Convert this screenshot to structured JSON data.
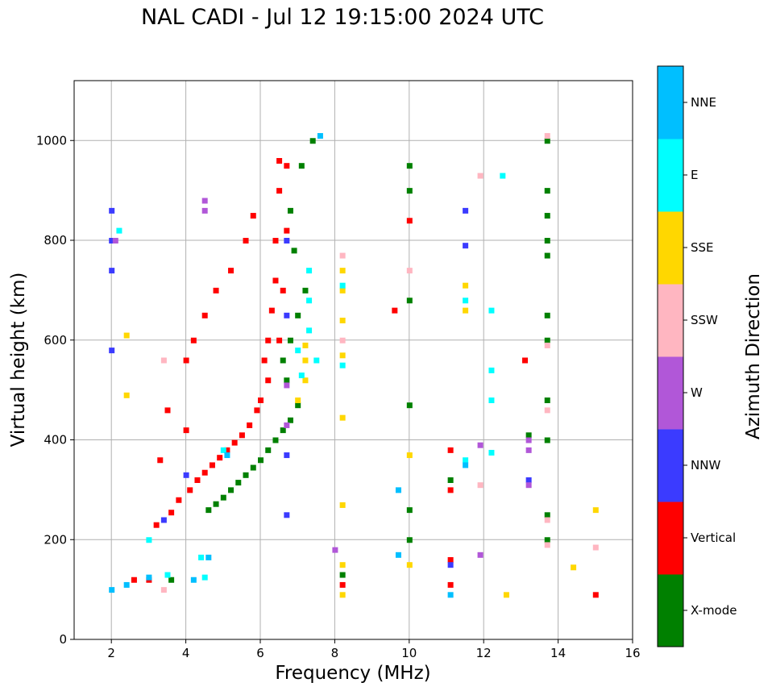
{
  "chart_data": {
    "type": "scatter",
    "title": "NAL CADI - Jul 12 19:15:00 2024 UTC",
    "xlabel": "Frequency (MHz)",
    "ylabel": "Virtual height (km)",
    "xlim": [
      1,
      16
    ],
    "ylim": [
      0,
      1120
    ],
    "xticks": [
      2,
      4,
      6,
      8,
      10,
      12,
      14,
      16
    ],
    "yticks": [
      0,
      200,
      400,
      600,
      800,
      1000
    ],
    "grid": true,
    "colorbar": {
      "label": "Azimuth Direction",
      "categories": [
        {
          "name": "X-mode",
          "color": "#008000"
        },
        {
          "name": "Vertical",
          "color": "#ff0000"
        },
        {
          "name": "NNW",
          "color": "#3b3bff"
        },
        {
          "name": "W",
          "color": "#b157d8"
        },
        {
          "name": "SSW",
          "color": "#ffb6c1"
        },
        {
          "name": "SSE",
          "color": "#ffd700"
        },
        {
          "name": "E",
          "color": "#00ffff"
        },
        {
          "name": "NNE",
          "color": "#00bfff"
        }
      ]
    },
    "series": [
      {
        "name": "X-mode",
        "points": [
          [
            4.6,
            260
          ],
          [
            4.8,
            272
          ],
          [
            5.0,
            285
          ],
          [
            5.2,
            300
          ],
          [
            5.4,
            315
          ],
          [
            5.6,
            330
          ],
          [
            5.8,
            345
          ],
          [
            6.0,
            360
          ],
          [
            6.2,
            380
          ],
          [
            6.4,
            400
          ],
          [
            6.6,
            420
          ],
          [
            6.8,
            440
          ],
          [
            7.0,
            470
          ],
          [
            6.7,
            520
          ],
          [
            6.6,
            560
          ],
          [
            6.8,
            600
          ],
          [
            7.0,
            650
          ],
          [
            7.2,
            700
          ],
          [
            6.9,
            780
          ],
          [
            6.8,
            860
          ],
          [
            7.1,
            950
          ],
          [
            7.4,
            1000
          ],
          [
            10.0,
            470
          ],
          [
            10.0,
            680
          ],
          [
            10.0,
            900
          ],
          [
            10.0,
            950
          ],
          [
            10.0,
            260
          ],
          [
            10.0,
            200
          ],
          [
            11.1,
            320
          ],
          [
            13.7,
            200
          ],
          [
            13.7,
            250
          ],
          [
            13.7,
            400
          ],
          [
            13.7,
            480
          ],
          [
            13.7,
            600
          ],
          [
            13.7,
            650
          ],
          [
            13.7,
            770
          ],
          [
            13.7,
            800
          ],
          [
            13.7,
            850
          ],
          [
            13.7,
            900
          ],
          [
            13.7,
            1000
          ],
          [
            13.2,
            410
          ],
          [
            8.2,
            130
          ],
          [
            3.6,
            120
          ]
        ]
      },
      {
        "name": "Vertical",
        "points": [
          [
            2.6,
            120
          ],
          [
            3.0,
            120
          ],
          [
            3.2,
            230
          ],
          [
            3.6,
            255
          ],
          [
            3.8,
            280
          ],
          [
            4.1,
            300
          ],
          [
            4.3,
            320
          ],
          [
            4.5,
            335
          ],
          [
            4.7,
            350
          ],
          [
            4.9,
            365
          ],
          [
            5.1,
            380
          ],
          [
            5.3,
            395
          ],
          [
            5.5,
            410
          ],
          [
            5.7,
            430
          ],
          [
            5.9,
            460
          ],
          [
            6.0,
            480
          ],
          [
            6.2,
            520
          ],
          [
            6.1,
            560
          ],
          [
            6.2,
            600
          ],
          [
            6.3,
            660
          ],
          [
            6.4,
            720
          ],
          [
            6.4,
            800
          ],
          [
            6.5,
            900
          ],
          [
            6.5,
            960
          ],
          [
            6.7,
            950
          ],
          [
            6.7,
            820
          ],
          [
            6.6,
            700
          ],
          [
            6.5,
            600
          ],
          [
            4.0,
            420
          ],
          [
            4.0,
            560
          ],
          [
            4.2,
            600
          ],
          [
            4.5,
            650
          ],
          [
            4.8,
            700
          ],
          [
            5.2,
            740
          ],
          [
            5.6,
            800
          ],
          [
            5.8,
            850
          ],
          [
            3.5,
            460
          ],
          [
            3.3,
            360
          ],
          [
            11.1,
            300
          ],
          [
            11.1,
            380
          ],
          [
            11.1,
            160
          ],
          [
            11.1,
            110
          ],
          [
            8.2,
            110
          ],
          [
            13.1,
            560
          ],
          [
            15.0,
            90
          ],
          [
            10.0,
            840
          ],
          [
            9.6,
            660
          ]
        ]
      },
      {
        "name": "NNW",
        "points": [
          [
            2.0,
            740
          ],
          [
            2.0,
            800
          ],
          [
            2.0,
            860
          ],
          [
            2.0,
            580
          ],
          [
            6.7,
            250
          ],
          [
            6.7,
            370
          ],
          [
            6.7,
            650
          ],
          [
            6.7,
            800
          ],
          [
            4.0,
            330
          ],
          [
            3.4,
            240
          ],
          [
            11.5,
            790
          ],
          [
            11.5,
            860
          ],
          [
            13.2,
            320
          ],
          [
            11.1,
            150
          ]
        ]
      },
      {
        "name": "W",
        "points": [
          [
            4.5,
            880
          ],
          [
            4.5,
            860
          ],
          [
            6.7,
            430
          ],
          [
            6.7,
            510
          ],
          [
            13.2,
            400
          ],
          [
            13.2,
            380
          ],
          [
            13.2,
            310
          ],
          [
            11.9,
            390
          ],
          [
            11.9,
            170
          ],
          [
            2.1,
            800
          ],
          [
            8.0,
            180
          ]
        ]
      },
      {
        "name": "SSW",
        "points": [
          [
            3.4,
            560
          ],
          [
            3.4,
            100
          ],
          [
            13.7,
            460
          ],
          [
            13.7,
            190
          ],
          [
            13.7,
            240
          ],
          [
            13.7,
            590
          ],
          [
            13.7,
            1010
          ],
          [
            15.0,
            185
          ],
          [
            11.9,
            310
          ],
          [
            11.9,
            930
          ],
          [
            8.2,
            600
          ],
          [
            8.2,
            770
          ],
          [
            10.0,
            740
          ]
        ]
      },
      {
        "name": "SSE",
        "points": [
          [
            2.4,
            610
          ],
          [
            2.4,
            490
          ],
          [
            7.2,
            520
          ],
          [
            7.2,
            560
          ],
          [
            7.2,
            590
          ],
          [
            7.0,
            480
          ],
          [
            8.2,
            700
          ],
          [
            8.2,
            740
          ],
          [
            8.2,
            640
          ],
          [
            8.2,
            570
          ],
          [
            8.2,
            445
          ],
          [
            8.2,
            270
          ],
          [
            8.2,
            150
          ],
          [
            8.2,
            90
          ],
          [
            10.0,
            370
          ],
          [
            10.0,
            150
          ],
          [
            14.4,
            145
          ],
          [
            15.0,
            260
          ],
          [
            12.6,
            90
          ],
          [
            11.5,
            660
          ],
          [
            11.5,
            710
          ]
        ]
      },
      {
        "name": "E",
        "points": [
          [
            7.3,
            620
          ],
          [
            7.3,
            680
          ],
          [
            7.3,
            740
          ],
          [
            7.0,
            580
          ],
          [
            7.1,
            530
          ],
          [
            7.5,
            560
          ],
          [
            8.2,
            550
          ],
          [
            8.2,
            710
          ],
          [
            11.5,
            680
          ],
          [
            11.5,
            360
          ],
          [
            12.5,
            930
          ],
          [
            12.2,
            660
          ],
          [
            12.2,
            540
          ],
          [
            12.2,
            480
          ],
          [
            12.2,
            375
          ],
          [
            2.2,
            820
          ],
          [
            3.0,
            200
          ],
          [
            3.5,
            130
          ],
          [
            4.4,
            165
          ],
          [
            4.5,
            125
          ],
          [
            5.0,
            380
          ]
        ]
      },
      {
        "name": "NNE",
        "points": [
          [
            4.2,
            120
          ],
          [
            4.6,
            165
          ],
          [
            5.1,
            370
          ],
          [
            7.6,
            1010
          ],
          [
            9.7,
            170
          ],
          [
            9.7,
            300
          ],
          [
            11.1,
            90
          ],
          [
            11.5,
            350
          ],
          [
            3.0,
            125
          ],
          [
            2.0,
            100
          ],
          [
            2.4,
            110
          ]
        ]
      }
    ]
  }
}
